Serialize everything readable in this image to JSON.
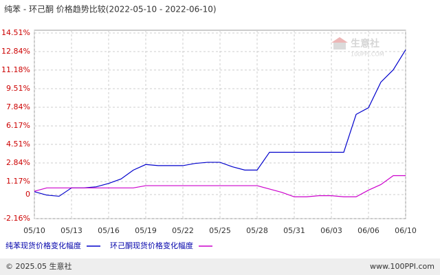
{
  "chart_data": {
    "type": "line",
    "title": "纯苯 - 环己酮 价格趋势比较(2022-05-10 - 2022-06-10)",
    "categories": [
      "05/10",
      null,
      null,
      "05/13",
      null,
      null,
      "05/16",
      null,
      null,
      "05/19",
      null,
      null,
      "05/22",
      null,
      null,
      "05/25",
      null,
      null,
      "05/28",
      null,
      null,
      "05/31",
      null,
      null,
      "06/03",
      null,
      null,
      "06/06",
      null,
      null,
      "06/10"
    ],
    "series": [
      {
        "name": "纯苯现货价格变化幅度",
        "color": "#0000cc",
        "values": [
          0.26,
          -0.05,
          -0.15,
          0.6,
          0.6,
          0.7,
          1.0,
          1.4,
          2.2,
          2.7,
          2.6,
          2.6,
          2.6,
          2.8,
          2.9,
          2.9,
          2.5,
          2.2,
          2.2,
          3.8,
          3.8,
          3.8,
          3.8,
          3.8,
          3.8,
          3.8,
          7.2,
          7.8,
          10.1,
          11.2,
          13.0
        ]
      },
      {
        "name": "环己酮现货价格变化幅度",
        "color": "#cc00cc",
        "values": [
          0.3,
          0.6,
          0.6,
          0.6,
          0.6,
          0.6,
          0.6,
          0.6,
          0.6,
          0.8,
          0.8,
          0.8,
          0.8,
          0.8,
          0.8,
          0.8,
          0.8,
          0.8,
          0.8,
          0.5,
          0.2,
          -0.2,
          -0.2,
          -0.1,
          -0.1,
          -0.2,
          -0.2,
          0.4,
          0.9,
          1.7,
          1.7
        ]
      }
    ],
    "ylim": [
      -2.16,
      14.51
    ],
    "yticks": [
      {
        "value": -2.16,
        "label": "-2.16%"
      },
      0,
      {
        "value": 1.17,
        "label": "1.17%"
      },
      {
        "value": 2.84,
        "label": "2.84%"
      },
      {
        "value": 4.51,
        "label": "4.51%"
      },
      {
        "value": 6.17,
        "label": "6.17%"
      },
      {
        "value": 7.84,
        "label": "7.84%"
      },
      {
        "value": 9.51,
        "label": "9.51%"
      },
      {
        "value": 11.18,
        "label": "11.18%"
      },
      {
        "value": 12.84,
        "label": "12.84%"
      },
      {
        "value": 14.51,
        "label": "14.51%"
      }
    ],
    "grid": true
  },
  "watermark": {
    "name": "生意社",
    "url": "100PPI.COM"
  },
  "footer": {
    "copyright": "© 2025.05 生意社",
    "site": "www.100PPI.com"
  }
}
